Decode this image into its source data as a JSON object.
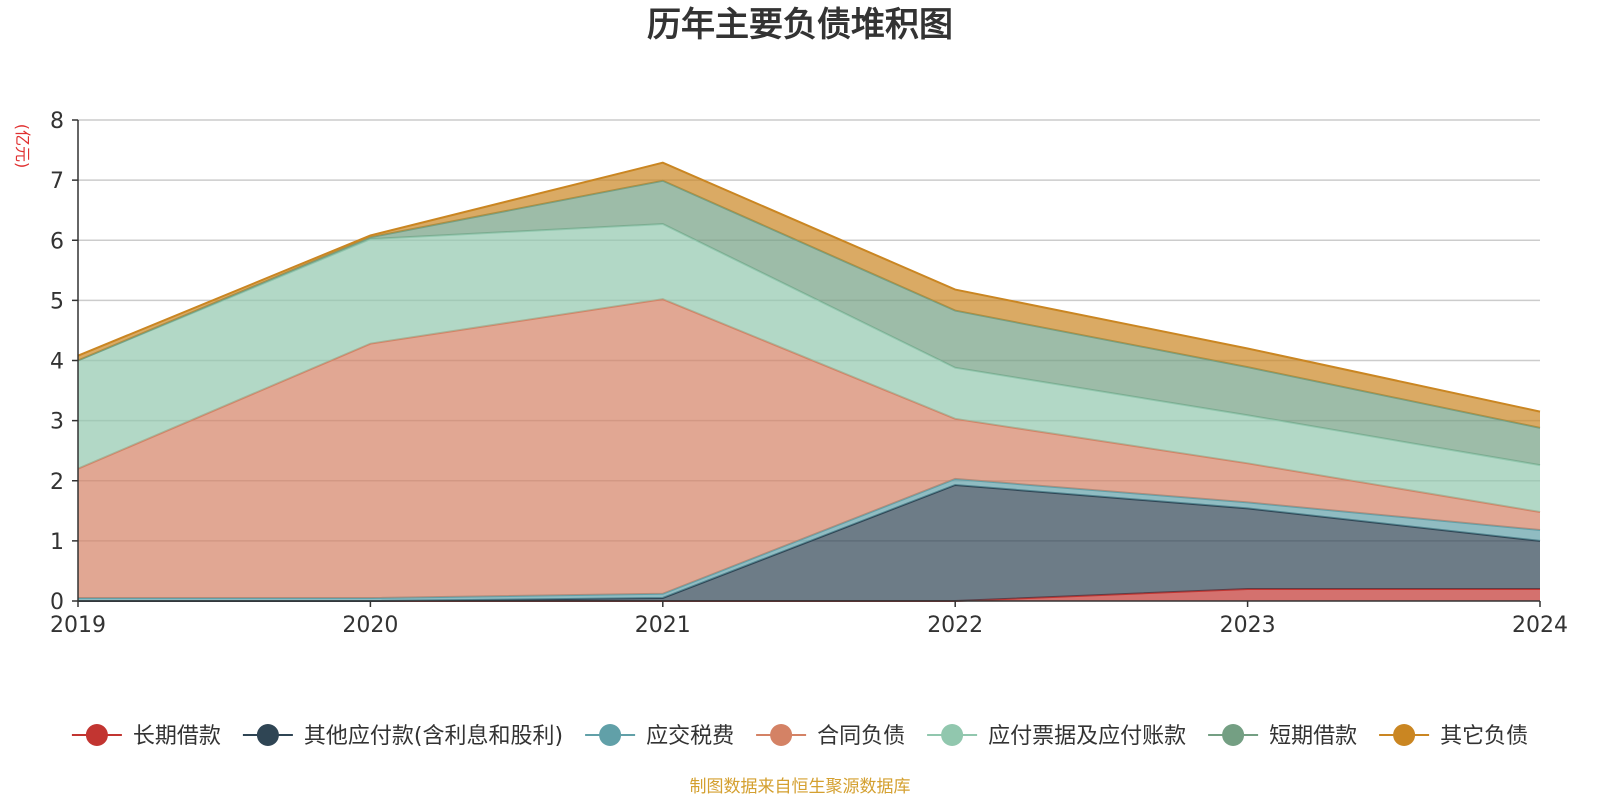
{
  "colors": {
    "grid": "#cccccc",
    "axis": "#333333",
    "unit": "#e03030",
    "source": "#d4a030"
  },
  "chart_data": {
    "type": "area",
    "stacked": true,
    "title": "历年主要负债堆积图",
    "unit_label": "(亿元)",
    "source": "制图数据来自恒生聚源数据库",
    "categories": [
      "2019",
      "2020",
      "2021",
      "2022",
      "2023",
      "2024"
    ],
    "ylim": [
      0,
      8
    ],
    "yticks": [
      0,
      1,
      2,
      3,
      4,
      5,
      6,
      7,
      8
    ],
    "grid": true,
    "legend_position": "bottom",
    "series": [
      {
        "name": "长期借款",
        "color": "#c23531",
        "values": [
          0,
          0,
          0,
          0,
          0.2,
          0.2
        ]
      },
      {
        "name": "其他应付款(含利息和股利)",
        "color": "#2f4554",
        "values": [
          0,
          0,
          0.05,
          1.93,
          1.34,
          0.8
        ]
      },
      {
        "name": "应交税费",
        "color": "#61a0a8",
        "values": [
          0.05,
          0.05,
          0.07,
          0.1,
          0.1,
          0.18
        ]
      },
      {
        "name": "合同负债",
        "color": "#d48265",
        "values": [
          2.15,
          4.23,
          4.9,
          1.0,
          0.65,
          0.3
        ]
      },
      {
        "name": "应付票据及应付账款",
        "color": "#91c7ae",
        "values": [
          1.8,
          1.74,
          1.25,
          0.85,
          0.8,
          0.78
        ]
      },
      {
        "name": "短期借款",
        "color": "#749f83",
        "values": [
          0,
          0.03,
          0.72,
          0.95,
          0.8,
          0.62
        ]
      },
      {
        "name": "其它负债",
        "color": "#ca8622",
        "values": [
          0.08,
          0.03,
          0.3,
          0.35,
          0.31,
          0.27
        ]
      }
    ]
  }
}
